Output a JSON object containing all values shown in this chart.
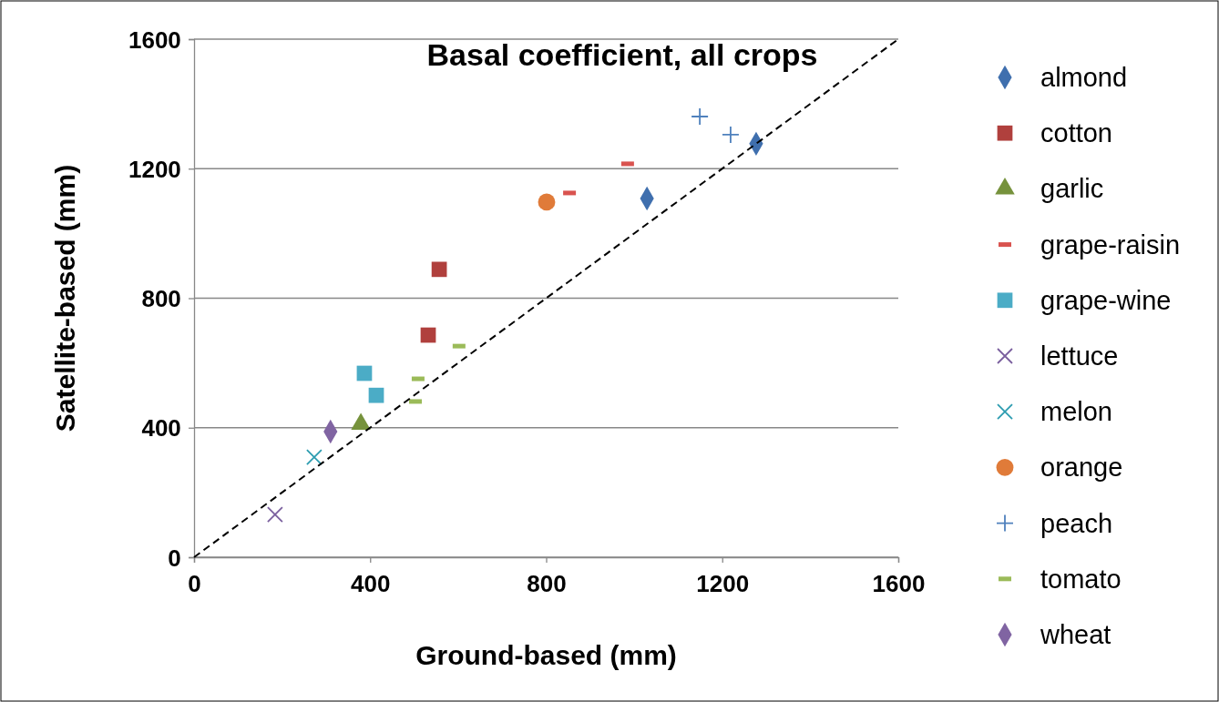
{
  "chart_data": {
    "type": "scatter",
    "title": "Basal coefficient, all crops",
    "xlabel": "Ground-based (mm)",
    "ylabel": "Satellite-based  (mm)",
    "xlim": [
      0,
      1600
    ],
    "ylim": [
      0,
      1600
    ],
    "xticks": [
      0,
      400,
      800,
      1200,
      1600
    ],
    "yticks": [
      0,
      400,
      800,
      1200,
      1600
    ],
    "grid": "y",
    "legend": "right",
    "series": [
      {
        "name": "almond",
        "color": "#3f6fae",
        "marker": "diamond",
        "x": [
          1029,
          1277
        ],
        "values": [
          1108,
          1277
        ]
      },
      {
        "name": "cotton",
        "color": "#b0403d",
        "marker": "square",
        "x": [
          557,
          532
        ],
        "values": [
          889,
          686
        ]
      },
      {
        "name": "garlic",
        "color": "#76923c",
        "marker": "triangle",
        "x": [
          379
        ],
        "values": [
          411
        ]
      },
      {
        "name": "grape-raisin",
        "color": "#d9534f",
        "x": [
          853,
          985
        ],
        "values": [
          1125,
          1215
        ]
      },
      {
        "name": "grape-wine",
        "color": "#4bacc6",
        "marker": "square",
        "x": [
          387,
          414
        ],
        "values": [
          568,
          500
        ]
      },
      {
        "name": "lettuce",
        "color": "#7a5f9e",
        "marker": "cross",
        "x": [
          184
        ],
        "values": [
          132
        ]
      },
      {
        "name": "melon",
        "color": "#2c9cb0",
        "marker": "cross",
        "x": [
          273
        ],
        "values": [
          309
        ]
      },
      {
        "name": "orange",
        "color": "#e07b39",
        "marker": "circle",
        "x": [
          801
        ],
        "values": [
          1097
        ]
      },
      {
        "name": "peach",
        "color": "#4f81bd",
        "marker": "plus",
        "x": [
          1149,
          1219
        ],
        "values": [
          1361,
          1305
        ]
      },
      {
        "name": "tomato",
        "color": "#9bbb59",
        "x": [
          602,
          509,
          503
        ],
        "values": [
          652,
          551,
          481
        ]
      },
      {
        "name": "wheat",
        "color": "#8064a2",
        "marker": "diamond",
        "x": [
          310
        ],
        "values": [
          388
        ]
      },
      {
        "type": "line",
        "color": "#000000",
        "line_style": "dashed",
        "marker": "none",
        "x": [
          0,
          1600
        ],
        "values": [
          0,
          1600
        ]
      }
    ]
  }
}
